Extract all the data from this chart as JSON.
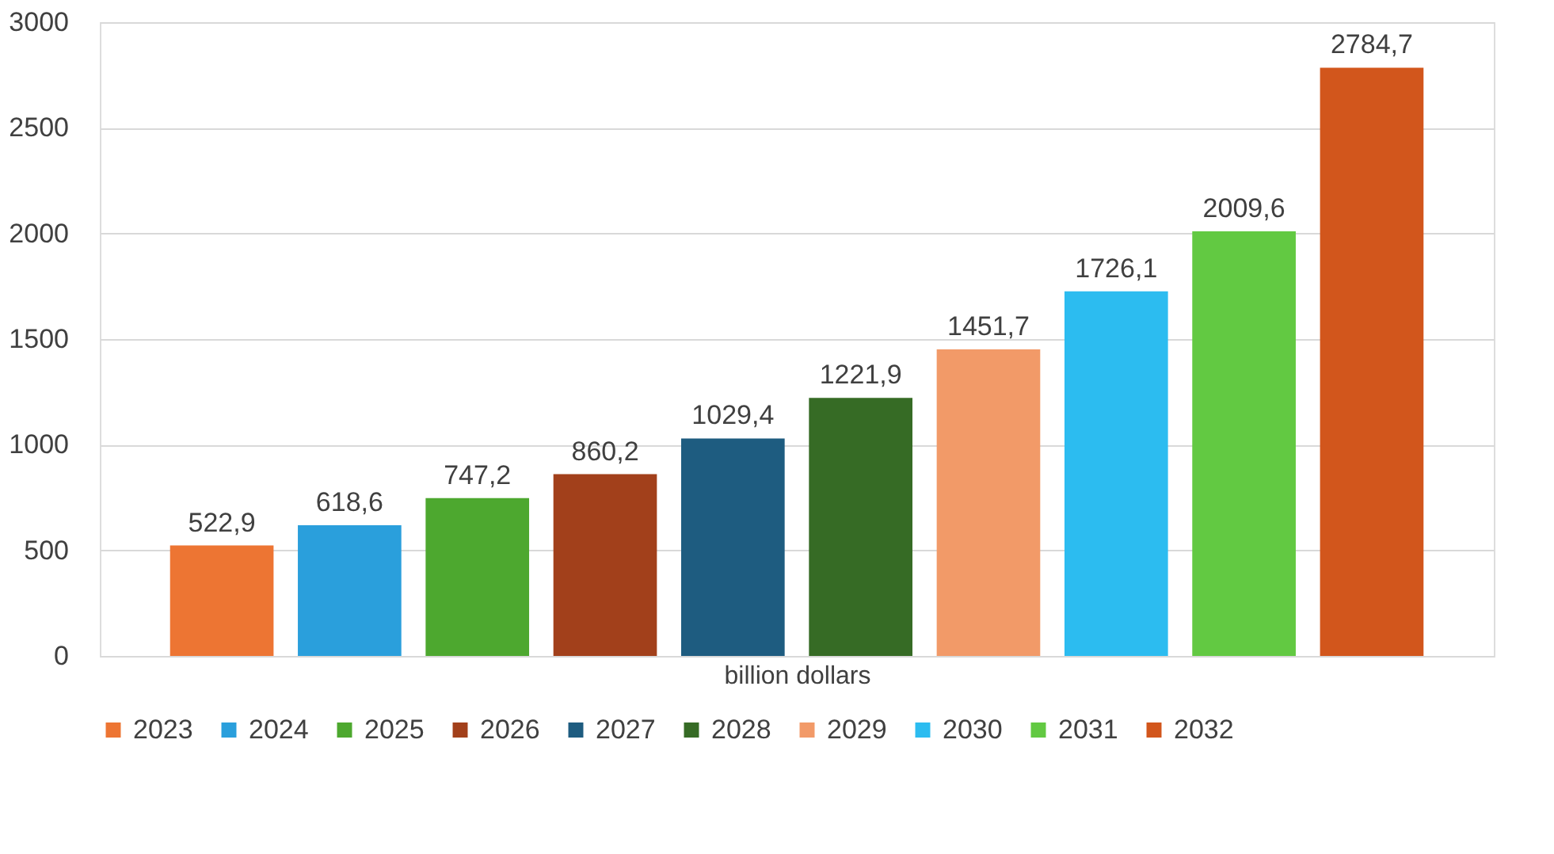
{
  "chart_data": {
    "type": "bar",
    "xlabel": "billion dollars",
    "categories": [
      null
    ],
    "series": [
      {
        "name": "2023",
        "color": "#ed7533",
        "values": [
          522.9
        ],
        "value_labels": [
          "522,9"
        ]
      },
      {
        "name": "2024",
        "color": "#2a9fdc",
        "values": [
          618.6
        ],
        "value_labels": [
          "618,6"
        ]
      },
      {
        "name": "2025",
        "color": "#4da82f",
        "values": [
          747.2
        ],
        "value_labels": [
          "747,2"
        ]
      },
      {
        "name": "2026",
        "color": "#a2401b",
        "values": [
          860.2
        ],
        "value_labels": [
          "860,2"
        ]
      },
      {
        "name": "2027",
        "color": "#1e5c80",
        "values": [
          1029.4
        ],
        "value_labels": [
          "1029,4"
        ]
      },
      {
        "name": "2028",
        "color": "#366b25",
        "values": [
          1221.9
        ],
        "value_labels": [
          "1221,9"
        ]
      },
      {
        "name": "2029",
        "color": "#f29a68",
        "values": [
          1451.7
        ],
        "value_labels": [
          "1451,7"
        ]
      },
      {
        "name": "2030",
        "color": "#2cbcf0",
        "values": [
          1726.1
        ],
        "value_labels": [
          "1726,1"
        ]
      },
      {
        "name": "2031",
        "color": "#62c942",
        "values": [
          2009.6
        ],
        "value_labels": [
          "2009,6"
        ]
      },
      {
        "name": "2032",
        "color": "#d2561c",
        "values": [
          2784.7
        ],
        "value_labels": [
          "2784,7"
        ]
      }
    ],
    "ylim": [
      0,
      3000
    ],
    "yticks": [
      0,
      500,
      1000,
      1500,
      2000,
      2500,
      3000
    ],
    "grid": "y",
    "legend": "bottom"
  }
}
